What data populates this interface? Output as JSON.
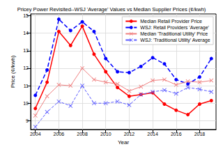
{
  "chart_data": {
    "type": "line",
    "title": "Pricey Power Revisited--WSJ 'Average' Values vs Median Supplier Prices (¢/kwh)",
    "x_label": "Year",
    "y_label": "Price (¢/kwh)",
    "x": [
      2004,
      2005,
      2006,
      2007,
      2008,
      2009,
      2010,
      2011,
      2012,
      2013,
      2014,
      2015,
      2016,
      2017,
      2018,
      2019
    ],
    "series": [
      {
        "name": "Median Retail Provider Price",
        "color": "#ff0000",
        "marker": "circle",
        "line_style": "solid",
        "values": [
          9.7,
          11.2,
          14.1,
          13.3,
          14.4,
          12.8,
          11.8,
          10.9,
          10.4,
          10.5,
          10.6,
          9.95,
          9.6,
          9.35,
          9.95,
          10.15
        ]
      },
      {
        "name": "WSJ: Retail Providers 'Average'",
        "color": "#0000ff",
        "marker": "circle",
        "line_style": "dashed",
        "values": [
          10.45,
          11.9,
          14.8,
          14.15,
          14.65,
          14.1,
          12.55,
          11.8,
          11.75,
          12.1,
          12.6,
          12.25,
          11.35,
          11.1,
          11.5,
          12.55
        ]
      },
      {
        "name": "Median 'Traditional Utility' Price",
        "color": "#f08080",
        "marker": "x",
        "line_style": "solid",
        "values": [
          9.3,
          10.4,
          11.05,
          11.0,
          12.0,
          11.35,
          11.2,
          11.1,
          10.7,
          10.95,
          11.3,
          11.35,
          11.05,
          11.25,
          11.2,
          11.3
        ]
      },
      {
        "name": "WSJ: 'Traditional Utility' Average",
        "color": "#5a5aff",
        "marker": "x",
        "line_style": "dashed",
        "values": [
          8.65,
          9.5,
          10.1,
          9.85,
          11.0,
          10.0,
          10.0,
          10.1,
          9.9,
          10.5,
          10.65,
          10.75,
          10.55,
          10.9,
          10.8,
          10.65
        ]
      }
    ],
    "xlim": [
      2003.6,
      2019.4
    ],
    "xticks": [
      2004,
      2006,
      2008,
      2010,
      2012,
      2014,
      2016,
      2018
    ],
    "ylim": [
      8.5,
      15.1
    ],
    "yticks": [
      9,
      10,
      11,
      12,
      13,
      14,
      15
    ],
    "grid": true,
    "legend": "upper right"
  }
}
